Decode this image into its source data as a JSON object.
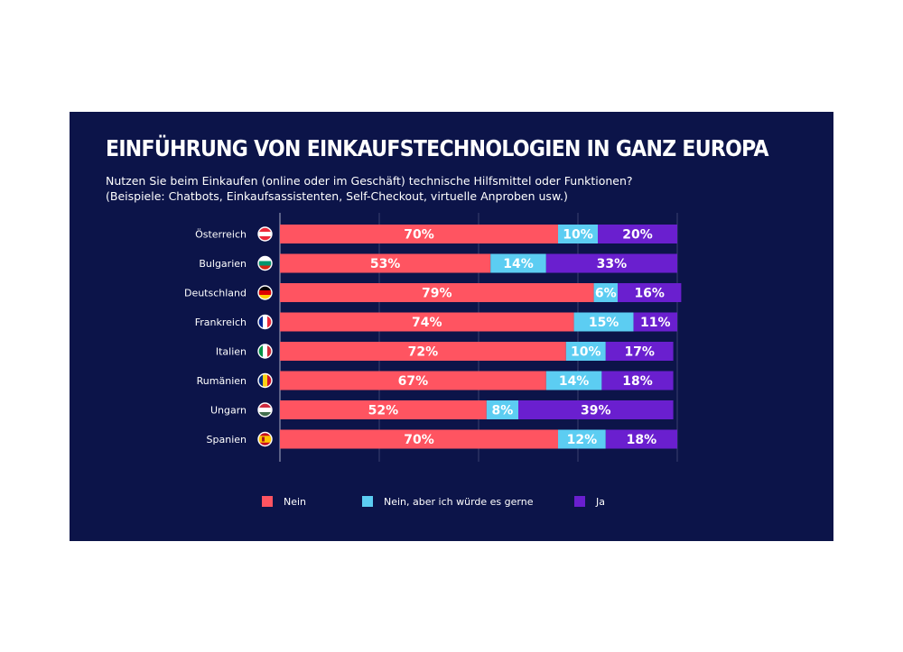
{
  "title": "EINFÜHRUNG VON EINKAUFSTECHNOLOGIEN IN GANZ EUROPA",
  "subtitle_line1": "Nutzen Sie beim Einkaufen (online oder im Geschäft) technische Hilfsmittel oder Funktionen?",
  "subtitle_line2": "(Beispiele: Chatbots, Einkaufsassistenten, Self-Checkout, virtuelle Anproben usw.)",
  "colors": {
    "background": "#0c1449",
    "nein": "#ff5461",
    "nein_gerne": "#5ccdf2",
    "ja": "#6a1fcf"
  },
  "chart_data": {
    "type": "bar",
    "orientation": "horizontal",
    "stacked": true,
    "categories": [
      "Österreich",
      "Bulgarien",
      "Deutschland",
      "Frankreich",
      "Italien",
      "Rumänien",
      "Ungarn",
      "Spanien"
    ],
    "series": [
      {
        "name": "Nein",
        "color": "#ff5461",
        "values": [
          70,
          53,
          79,
          74,
          72,
          67,
          52,
          70
        ]
      },
      {
        "name": "Nein, aber ich würde es gerne",
        "color": "#5ccdf2",
        "values": [
          10,
          14,
          6,
          15,
          10,
          14,
          8,
          12
        ]
      },
      {
        "name": "Ja",
        "color": "#6a1fcf",
        "values": [
          20,
          33,
          16,
          11,
          17,
          18,
          39,
          18
        ]
      }
    ],
    "unit": "%",
    "xlim": [
      0,
      100
    ],
    "grid": true,
    "legend": "bottom",
    "flag_icons": [
      "austria-flag-icon",
      "bulgaria-flag-icon",
      "germany-flag-icon",
      "france-flag-icon",
      "italy-flag-icon",
      "romania-flag-icon",
      "hungary-flag-icon",
      "spain-flag-icon"
    ]
  }
}
